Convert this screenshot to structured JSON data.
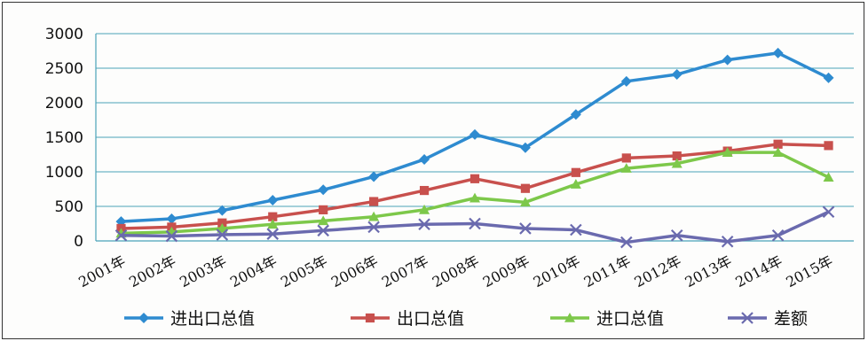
{
  "chart_data": {
    "type": "line",
    "categories": [
      "2001年",
      "2002年",
      "2003年",
      "2004年",
      "2005年",
      "2006年",
      "2007年",
      "2008年",
      "2009年",
      "2010年",
      "2011年",
      "2012年",
      "2013年",
      "2014年",
      "2015年"
    ],
    "ylim": [
      0,
      3000
    ],
    "yticks": [
      0,
      500,
      1000,
      1500,
      2000,
      2500,
      3000
    ],
    "grid": true,
    "legend_position": "bottom",
    "series": [
      {
        "name": "进出口总值",
        "color": "#2E8BD0",
        "marker": "diamond",
        "values": [
          280,
          320,
          440,
          590,
          740,
          930,
          1180,
          1540,
          1350,
          1830,
          2310,
          2410,
          2620,
          2720,
          2360
        ]
      },
      {
        "name": "出口总值",
        "color": "#C8504D",
        "marker": "square",
        "values": [
          180,
          200,
          260,
          350,
          450,
          570,
          730,
          900,
          760,
          990,
          1200,
          1230,
          1300,
          1400,
          1380
        ]
      },
      {
        "name": "进口总值",
        "color": "#7DC84A",
        "marker": "triangle",
        "values": [
          110,
          130,
          180,
          240,
          290,
          350,
          450,
          620,
          560,
          820,
          1050,
          1120,
          1280,
          1280,
          920
        ]
      },
      {
        "name": "差额",
        "color": "#6A6AAE",
        "marker": "x",
        "values": [
          80,
          70,
          90,
          100,
          150,
          200,
          240,
          250,
          180,
          160,
          -20,
          80,
          -10,
          80,
          420
        ]
      }
    ]
  }
}
